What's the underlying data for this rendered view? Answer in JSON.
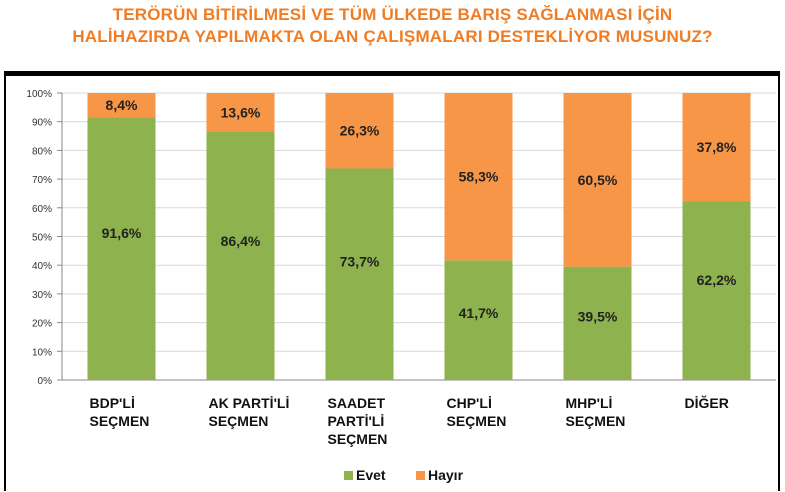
{
  "title_lines": [
    "TERÖRÜN BİTİRİLMESİ VE TÜM ÜLKEDE BARIŞ SAĞLANMASI İÇİN",
    "HALİHAZIRDA YAPILMAKTA OLAN ÇALIŞMALARI DESTEKLİYOR MUSUNUZ?"
  ],
  "colors": {
    "title": "#f07c23",
    "evet": "#8db24e",
    "hayir": "#f79646",
    "grid": "#d9d9d9"
  },
  "chart_data": {
    "type": "bar",
    "stacked": true,
    "title": "TERÖRÜN BİTİRİLMESİ VE TÜM ÜLKEDE BARIŞ SAĞLANMASI İÇİN HALİHAZIRDA YAPILMAKTA OLAN ÇALIŞMALARI DESTEKLİYOR MUSUNUZ?",
    "categories": [
      [
        "BDP'Lİ",
        "SEÇMEN"
      ],
      [
        "AK PARTİ'Lİ",
        "SEÇMEN"
      ],
      [
        "SAADET",
        "PARTİ'Lİ",
        "SEÇMEN"
      ],
      [
        "CHP'Lİ",
        "SEÇMEN"
      ],
      [
        "MHP'Lİ",
        "SEÇMEN"
      ],
      [
        "DİĞER"
      ]
    ],
    "series": [
      {
        "name": "Evet",
        "color": "#8db24e",
        "values": [
          91.6,
          86.4,
          73.7,
          41.7,
          39.5,
          62.2
        ],
        "labels": [
          "91,6%",
          "86,4%",
          "73,7%",
          "41,7%",
          "39,5%",
          "62,2%"
        ]
      },
      {
        "name": "Hayır",
        "color": "#f79646",
        "values": [
          8.4,
          13.6,
          26.3,
          58.3,
          60.5,
          37.8
        ],
        "labels": [
          "8,4%",
          "13,6%",
          "26,3%",
          "58,3%",
          "60,5%",
          "37,8%"
        ]
      }
    ],
    "yticks": [
      "0%",
      "10%",
      "20%",
      "30%",
      "40%",
      "50%",
      "60%",
      "70%",
      "80%",
      "90%",
      "100%"
    ],
    "ylim": [
      0,
      100
    ],
    "grid": true,
    "legend": "bottom"
  }
}
